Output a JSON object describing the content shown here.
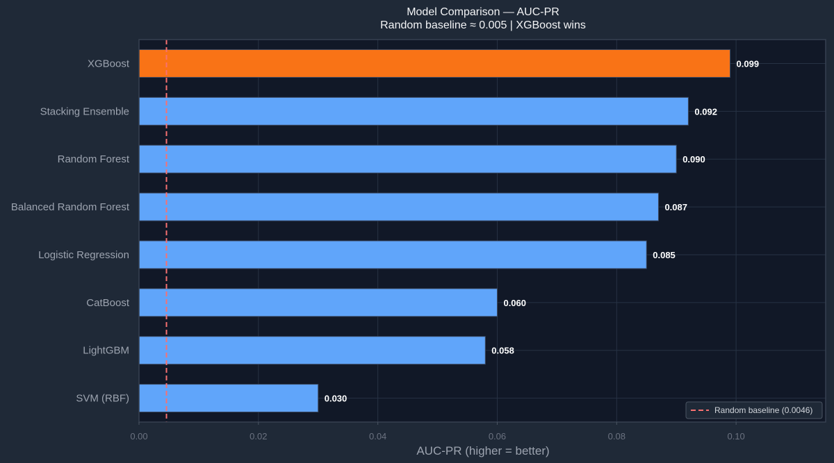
{
  "chart_data": {
    "type": "bar",
    "orientation": "horizontal",
    "title": "Model Comparison — AUC-PR",
    "subtitle": "Random baseline ≈ 0.005  |  XGBoost wins",
    "xlabel": "AUC-PR (higher = better)",
    "ylabel": "",
    "categories": [
      "XGBoost",
      "Stacking Ensemble",
      "Random Forest",
      "Balanced Random Forest",
      "Logistic Regression",
      "CatBoost",
      "LightGBM",
      "SVM (RBF)"
    ],
    "values": [
      0.099,
      0.092,
      0.09,
      0.087,
      0.085,
      0.06,
      0.058,
      0.03
    ],
    "value_labels": [
      "0.099",
      "0.092",
      "0.090",
      "0.087",
      "0.085",
      "0.060",
      "0.058",
      "0.030"
    ],
    "highlight_category": "XGBoost",
    "xlim": [
      0,
      0.115
    ],
    "xticks": [
      0.0,
      0.02,
      0.04,
      0.06,
      0.08,
      0.1
    ],
    "xtick_labels": [
      "0.00",
      "0.02",
      "0.04",
      "0.06",
      "0.08",
      "0.10"
    ],
    "baseline": {
      "value": 0.0046,
      "label": "Random baseline (0.0046)"
    },
    "grid": true,
    "legend_position": "bottom-right",
    "colors": {
      "bar": "#60a5fa",
      "highlight": "#f97316",
      "baseline": "#f87171",
      "plot_bg": "#111827",
      "figure_bg": "#1f2937"
    }
  }
}
